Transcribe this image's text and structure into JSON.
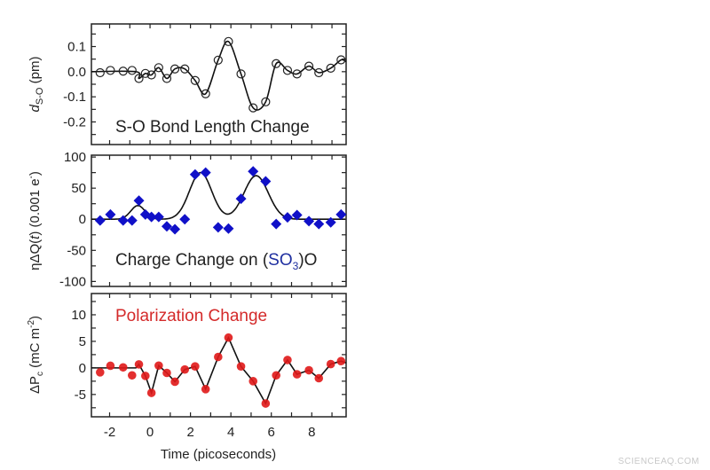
{
  "chart_data": [
    {
      "type": "line",
      "id": "bond",
      "annotation": "S-O Bond Length Change",
      "ylabel": {
        "main": "d",
        "sub": "S-O",
        "unit": " (pm)"
      },
      "xlim": [
        -2.9,
        9.7
      ],
      "ylim": [
        -0.29,
        0.19
      ],
      "yticks": [
        0.1,
        0.0,
        -0.1,
        -0.2
      ],
      "ytick_labels": [
        "0.1",
        "0.0",
        "-0.1",
        "-0.2"
      ],
      "marker": "open-circle",
      "color": "#222222",
      "x": [
        -2.47,
        -1.96,
        -1.33,
        -0.89,
        -0.55,
        -0.23,
        0.07,
        0.43,
        0.83,
        1.23,
        1.72,
        2.23,
        2.75,
        3.37,
        3.88,
        4.5,
        5.1,
        5.72,
        6.24,
        6.8,
        7.27,
        7.86,
        8.35,
        8.94,
        9.45
      ],
      "y": [
        -0.004,
        0.005,
        0.002,
        0.005,
        -0.027,
        -0.007,
        -0.013,
        0.016,
        -0.027,
        0.011,
        0.011,
        -0.035,
        -0.088,
        0.046,
        0.12,
        -0.009,
        -0.144,
        -0.12,
        0.032,
        0.005,
        -0.009,
        0.022,
        -0.004,
        0.014,
        0.047
      ]
    },
    {
      "type": "line",
      "id": "charge",
      "annotation": {
        "pre": "Charge Change on (",
        "mid": "SO",
        "sub": "3",
        "post": ")O",
        "mid_color": "#1f2fa0"
      },
      "ylabel": {
        "main": "ηΔQ(",
        "ital": "t",
        "unit": ") (0.001 e",
        "sup": "-",
        "end": ")"
      },
      "xlim": [
        -2.9,
        9.7
      ],
      "ylim": [
        -108,
        103
      ],
      "yticks": [
        100,
        50,
        0,
        -50,
        -100
      ],
      "ytick_labels": [
        "100",
        "50",
        "0",
        "-50",
        "-100"
      ],
      "marker": "diamond",
      "color": "#1010c8",
      "x": [
        -2.47,
        -1.96,
        -1.33,
        -0.89,
        -0.55,
        -0.23,
        0.07,
        0.43,
        0.83,
        1.23,
        1.72,
        2.23,
        2.75,
        3.37,
        3.88,
        4.5,
        5.1,
        5.72,
        6.24,
        6.8,
        7.27,
        7.86,
        8.35,
        8.94,
        9.45
      ],
      "y": [
        -2,
        7.6,
        -2,
        -2,
        30,
        7.6,
        3.8,
        3.8,
        -11.4,
        -16,
        0,
        72,
        75,
        -13,
        -15,
        33,
        77,
        61,
        -7.6,
        3,
        6.7,
        -3,
        -7.6,
        -5,
        7.6
      ],
      "fit_peaks": [
        {
          "center": -0.6,
          "amplitude": 22,
          "width": 0.35
        },
        {
          "center": 2.5,
          "amplitude": 75,
          "width": 0.55
        },
        {
          "center": 5.25,
          "amplitude": 70,
          "width": 0.6
        }
      ]
    },
    {
      "type": "line",
      "id": "polarization",
      "annotation": "Polarization Change",
      "annotation_color": "#d42a2a",
      "ylabel": {
        "main": "ΔP",
        "sub": "c",
        "unit": " (mC m",
        "sup": "-2",
        "end": ")"
      },
      "xlim": [
        -2.9,
        9.7
      ],
      "ylim": [
        -9.2,
        14
      ],
      "yticks": [
        10,
        5,
        0,
        -5
      ],
      "ytick_labels": [
        "10",
        "5",
        "0",
        "-5"
      ],
      "marker": "filled-circle",
      "color": "#e01818",
      "x": [
        -2.47,
        -1.96,
        -1.33,
        -0.89,
        -0.55,
        -0.23,
        0.07,
        0.43,
        0.83,
        1.23,
        1.72,
        2.23,
        2.75,
        3.37,
        3.88,
        4.5,
        5.1,
        5.72,
        6.24,
        6.8,
        7.27,
        7.86,
        8.35,
        8.94,
        9.45
      ],
      "y": [
        -0.83,
        0.4,
        0.1,
        -1.4,
        0.67,
        -1.5,
        -4.7,
        0.44,
        -0.94,
        -2.6,
        -0.3,
        0.28,
        -4,
        2.06,
        5.7,
        0.28,
        -2.5,
        -6.7,
        -1.4,
        1.5,
        -1.2,
        -0.44,
        -1.94,
        0.72,
        1.28
      ],
      "xticks": [
        -2,
        0,
        2,
        4,
        6,
        8
      ],
      "xtick_labels": [
        "-2",
        "0",
        "2",
        "4",
        "6",
        "8"
      ],
      "xlabel": "Time (picoseconds)"
    }
  ],
  "watermark": "SCIENCEAQ.COM"
}
